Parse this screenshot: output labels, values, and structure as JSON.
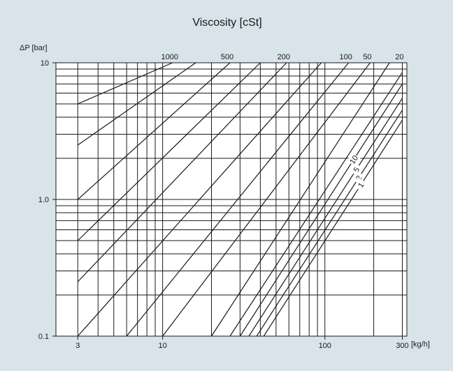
{
  "chart_data": {
    "type": "line",
    "title": "Viscosity [cSt]",
    "ylabel": "ΔP [bar]",
    "xlabel": "[kg/h]",
    "x_scale": "log",
    "y_scale": "log",
    "xlim": [
      2.2,
      320
    ],
    "ylim": [
      0.1,
      10
    ],
    "x_ticks": [
      {
        "value": 3,
        "label": "3"
      },
      {
        "value": 10,
        "label": "10"
      },
      {
        "value": 100,
        "label": "100"
      },
      {
        "value": 300,
        "label": "300"
      }
    ],
    "y_ticks": [
      {
        "value": 10,
        "label": "10"
      },
      {
        "value": 1,
        "label": "1.0"
      },
      {
        "value": 0.1,
        "label": "0.1"
      }
    ],
    "grid": true,
    "series": [
      {
        "name": "1000",
        "label_position": "top",
        "points": [
          [
            3,
            5.0
          ],
          [
            11.5,
            10
          ]
        ]
      },
      {
        "name": "",
        "points": [
          [
            3,
            2.5
          ],
          [
            16,
            10
          ]
        ]
      },
      {
        "name": "500",
        "label_position": "top",
        "points": [
          [
            3,
            1.0
          ],
          [
            26,
            10
          ]
        ]
      },
      {
        "name": "",
        "points": [
          [
            3,
            0.5
          ],
          [
            40,
            10
          ]
        ]
      },
      {
        "name": "200",
        "label_position": "top",
        "points": [
          [
            3,
            0.25
          ],
          [
            58,
            10
          ]
        ]
      },
      {
        "name": "",
        "points": [
          [
            3,
            0.1
          ],
          [
            95,
            10
          ]
        ]
      },
      {
        "name": "100",
        "label_position": "top",
        "points": [
          [
            6,
            0.1
          ],
          [
            140,
            10
          ]
        ]
      },
      {
        "name": "50",
        "label_position": "top",
        "points": [
          [
            10,
            0.1
          ],
          [
            190,
            10
          ]
        ]
      },
      {
        "name": "",
        "points": [
          [
            20,
            0.1
          ],
          [
            250,
            10
          ]
        ]
      },
      {
        "name": "20",
        "label_position": "top",
        "points": [
          [
            26,
            0.1
          ],
          [
            300,
            8.5
          ]
        ]
      },
      {
        "name": "10",
        "label_position": "inline",
        "points": [
          [
            30,
            0.1
          ],
          [
            300,
            7.0
          ]
        ]
      },
      {
        "name": "5",
        "label_position": "inline",
        "points": [
          [
            34,
            0.1
          ],
          [
            300,
            5.5
          ]
        ]
      },
      {
        "name": "2",
        "label_position": "inline",
        "points": [
          [
            38,
            0.1
          ],
          [
            300,
            4.5
          ]
        ]
      },
      {
        "name": "1",
        "label_position": "inline",
        "points": [
          [
            42,
            0.1
          ],
          [
            300,
            3.8
          ]
        ]
      }
    ]
  }
}
